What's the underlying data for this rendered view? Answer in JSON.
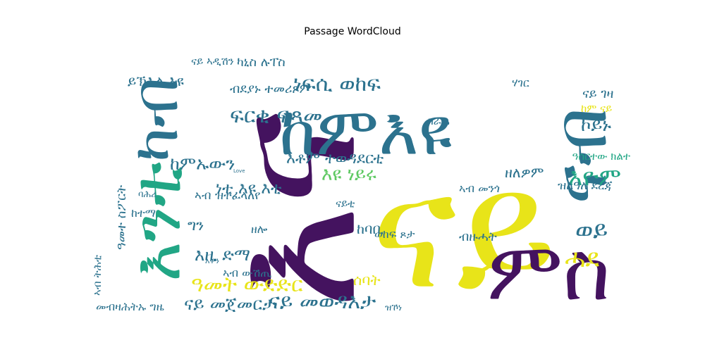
{
  "figure": {
    "title": "Passage WordCloud"
  },
  "colors": {
    "purple": "#44135f",
    "teal": "#2c728e",
    "green": "#21a685",
    "lime": "#5ec962",
    "yellow": "#e8e419"
  },
  "chart_data": {
    "type": "wordcloud",
    "title": "Passage WordCloud",
    "words": [
      {
        "text": "ናይ",
        "weight": 100,
        "orientation": "horizontal",
        "color": "yellow"
      },
      {
        "text": "እና",
        "weight": 95,
        "orientation": "vertical",
        "color": "purple"
      },
      {
        "text": "ምስ",
        "weight": 55,
        "orientation": "horizontal",
        "color": "purple"
      },
      {
        "text": "ከምእዩ",
        "weight": 50,
        "orientation": "horizontal",
        "color": "teal"
      },
      {
        "text": "እንቲ",
        "weight": 45,
        "orientation": "vertical",
        "color": "green"
      },
      {
        "text": "ናብ",
        "weight": 40,
        "orientation": "vertical",
        "color": "teal"
      },
      {
        "text": "ካብ",
        "weight": 35,
        "orientation": "vertical",
        "color": "teal"
      },
      {
        "text": "ነፍሲ ወከፍ",
        "weight": 18,
        "orientation": "horizontal",
        "color": "teal"
      },
      {
        "text": "ፍርቂ ፍጻመ",
        "weight": 17,
        "orientation": "horizontal",
        "color": "teal"
      },
      {
        "text": "ናይ መወዳእታ",
        "weight": 17,
        "orientation": "horizontal",
        "color": "teal"
      },
      {
        "text": "ዓመት ውድድር",
        "weight": 17,
        "orientation": "horizontal",
        "color": "yellow"
      },
      {
        "text": "ናይ መጀመርታ",
        "weight": 16,
        "orientation": "horizontal",
        "color": "teal"
      },
      {
        "text": "እቶም ተወዳደርቲ",
        "weight": 14,
        "orientation": "horizontal",
        "color": "teal"
      },
      {
        "text": "ከምኡውን",
        "weight": 14,
        "orientation": "horizontal",
        "color": "teal"
      },
      {
        "text": "እዩ ነይሩ",
        "weight": 14,
        "orientation": "horizontal",
        "color": "lime"
      },
      {
        "text": "ሓደ",
        "weight": 16,
        "orientation": "horizontal",
        "color": "yellow"
      },
      {
        "text": "እዮም",
        "weight": 16,
        "orientation": "horizontal",
        "color": "green"
      },
      {
        "text": "ወይ",
        "weight": 16,
        "orientation": "horizontal",
        "color": "teal"
      },
      {
        "text": "ኮይኑ",
        "weight": 14,
        "orientation": "horizontal",
        "color": "teal"
      },
      {
        "text": "ብደያኑ ተመሪጾም",
        "weight": 10,
        "orientation": "horizontal",
        "color": "teal"
      },
      {
        "text": "ይኽእል እዩ",
        "weight": 10,
        "orientation": "horizontal",
        "color": "teal"
      },
      {
        "text": "ካኒስ ሉፐስ",
        "weight": 10,
        "orientation": "horizontal",
        "color": "teal"
      },
      {
        "text": "ናይ ኣዲሽን",
        "weight": 9,
        "orientation": "horizontal",
        "color": "teal"
      },
      {
        "text": "ነቲ እዩ እቲ",
        "weight": 13,
        "orientation": "horizontal",
        "color": "teal"
      },
      {
        "text": "ኣብ ዝተፈላለየ",
        "weight": 9,
        "orientation": "horizontal",
        "color": "teal"
      },
      {
        "text": "ግን",
        "weight": 12,
        "orientation": "horizontal",
        "color": "teal"
      },
      {
        "text": "እዚ ድማ",
        "weight": 12,
        "orientation": "horizontal",
        "color": "teal"
      },
      {
        "text": "ዓመተ ስፖርት",
        "weight": 11,
        "orientation": "vertical",
        "color": "teal"
      },
      {
        "text": "ዘለዎም",
        "weight": 11,
        "orientation": "horizontal",
        "color": "teal"
      },
      {
        "text": "ዝለዓለ ደረጃ",
        "weight": 10,
        "orientation": "horizontal",
        "color": "teal"
      },
      {
        "text": "ኣብ መንጎ",
        "weight": 10,
        "orientation": "horizontal",
        "color": "teal"
      },
      {
        "text": "ወከፍ ጾታ",
        "weight": 9,
        "orientation": "horizontal",
        "color": "teal"
      },
      {
        "text": "ናይ ገዛ",
        "weight": 10,
        "orientation": "horizontal",
        "color": "teal"
      },
      {
        "text": "ከም ናይ",
        "weight": 9,
        "orientation": "horizontal",
        "color": "yellow"
      },
      {
        "text": "ዓሰርተው ክልተ",
        "weight": 9,
        "orientation": "horizontal",
        "color": "green"
      },
      {
        "text": "ሰባት",
        "weight": 9,
        "orientation": "horizontal",
        "color": "yellow"
      },
      {
        "text": "ኣብ ውሽጢ",
        "weight": 11,
        "orientation": "horizontal",
        "color": "teal"
      },
      {
        "text": "ከተማ",
        "weight": 8,
        "orientation": "horizontal",
        "color": "teal"
      },
      {
        "text": "ባሕሪ",
        "weight": 8,
        "orientation": "horizontal",
        "color": "teal"
      },
      {
        "text": "ብዙሓት",
        "weight": 8,
        "orientation": "horizontal",
        "color": "teal"
      },
      {
        "text": "ሃገር",
        "weight": 9,
        "orientation": "horizontal",
        "color": "teal"
      },
      {
        "text": "ስራሕ",
        "weight": 8,
        "orientation": "horizontal",
        "color": "teal"
      },
      {
        "text": "መብዛሕትኡ ግዜ",
        "weight": 8,
        "orientation": "horizontal",
        "color": "teal"
      },
      {
        "text": "እዋን",
        "weight": 8,
        "orientation": "horizontal",
        "color": "teal"
      },
      {
        "text": "ዝኾነ",
        "weight": 8,
        "orientation": "horizontal",
        "color": "teal"
      },
      {
        "text": "ኣብ ትሕቲ",
        "weight": 8,
        "orientation": "vertical",
        "color": "teal"
      },
      {
        "text": "ከባቢ",
        "weight": 9,
        "orientation": "horizontal",
        "color": "teal"
      },
      {
        "text": "ዘሎ",
        "weight": 8,
        "orientation": "horizontal",
        "color": "teal"
      },
      {
        "text": "ናይቲ",
        "weight": 8,
        "orientation": "horizontal",
        "color": "teal"
      },
      {
        "text": "Love",
        "weight": 3,
        "orientation": "horizontal",
        "color": "teal"
      }
    ]
  }
}
